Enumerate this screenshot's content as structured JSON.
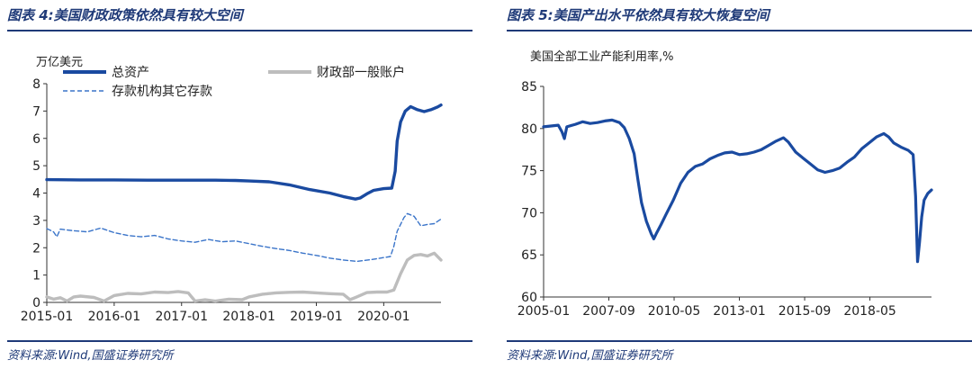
{
  "left": {
    "title": "图表 4:美国财政政策依然具有较大空间",
    "source": "资料来源:Wind,国盛证券研究所",
    "chart_data": {
      "type": "line",
      "unit_label": "万亿美元",
      "yticks": [
        0,
        1,
        2,
        3,
        4,
        5,
        6,
        7,
        8
      ],
      "ylim": [
        0,
        8
      ],
      "xlim": [
        2015.0,
        2020.85
      ],
      "xticks": [
        "2015-01",
        "2016-01",
        "2017-01",
        "2018-01",
        "2019-01",
        "2020-01"
      ],
      "legend": [
        "总资产",
        "财政部一般账户",
        "存款机构其它存款"
      ],
      "series": [
        {
          "name": "总资产",
          "color": "#1a4aa0",
          "style": "solid-thick",
          "points": [
            [
              2015.0,
              4.49
            ],
            [
              2015.5,
              4.48
            ],
            [
              2016.0,
              4.48
            ],
            [
              2016.5,
              4.47
            ],
            [
              2017.0,
              4.47
            ],
            [
              2017.5,
              4.47
            ],
            [
              2017.8,
              4.46
            ],
            [
              2018.0,
              4.44
            ],
            [
              2018.3,
              4.41
            ],
            [
              2018.6,
              4.3
            ],
            [
              2018.9,
              4.13
            ],
            [
              2019.2,
              4.0
            ],
            [
              2019.4,
              3.87
            ],
            [
              2019.58,
              3.78
            ],
            [
              2019.65,
              3.82
            ],
            [
              2019.75,
              3.97
            ],
            [
              2019.85,
              4.1
            ],
            [
              2020.0,
              4.16
            ],
            [
              2020.12,
              4.18
            ],
            [
              2020.17,
              4.8
            ],
            [
              2020.2,
              5.9
            ],
            [
              2020.25,
              6.6
            ],
            [
              2020.32,
              7.0
            ],
            [
              2020.4,
              7.16
            ],
            [
              2020.5,
              7.05
            ],
            [
              2020.6,
              6.98
            ],
            [
              2020.7,
              7.05
            ],
            [
              2020.8,
              7.15
            ],
            [
              2020.85,
              7.22
            ]
          ]
        },
        {
          "name": "财政部一般账户",
          "color": "#bdbdbd",
          "style": "solid-thick",
          "points": [
            [
              2015.0,
              0.2
            ],
            [
              2015.1,
              0.12
            ],
            [
              2015.2,
              0.17
            ],
            [
              2015.3,
              0.05
            ],
            [
              2015.4,
              0.2
            ],
            [
              2015.5,
              0.23
            ],
            [
              2015.7,
              0.18
            ],
            [
              2015.85,
              0.05
            ],
            [
              2016.0,
              0.25
            ],
            [
              2016.2,
              0.33
            ],
            [
              2016.4,
              0.31
            ],
            [
              2016.6,
              0.38
            ],
            [
              2016.8,
              0.36
            ],
            [
              2016.95,
              0.4
            ],
            [
              2017.1,
              0.35
            ],
            [
              2017.2,
              0.05
            ],
            [
              2017.35,
              0.1
            ],
            [
              2017.5,
              0.05
            ],
            [
              2017.7,
              0.12
            ],
            [
              2017.9,
              0.1
            ],
            [
              2018.0,
              0.2
            ],
            [
              2018.2,
              0.3
            ],
            [
              2018.4,
              0.35
            ],
            [
              2018.6,
              0.37
            ],
            [
              2018.8,
              0.38
            ],
            [
              2019.0,
              0.35
            ],
            [
              2019.2,
              0.32
            ],
            [
              2019.4,
              0.3
            ],
            [
              2019.5,
              0.1
            ],
            [
              2019.6,
              0.2
            ],
            [
              2019.75,
              0.36
            ],
            [
              2019.9,
              0.38
            ],
            [
              2020.05,
              0.38
            ],
            [
              2020.15,
              0.45
            ],
            [
              2020.25,
              1.05
            ],
            [
              2020.35,
              1.55
            ],
            [
              2020.45,
              1.72
            ],
            [
              2020.55,
              1.75
            ],
            [
              2020.65,
              1.7
            ],
            [
              2020.75,
              1.8
            ],
            [
              2020.85,
              1.55
            ]
          ]
        },
        {
          "name": "存款机构其它存款",
          "color": "#3a74c9",
          "style": "dashed",
          "points": [
            [
              2015.0,
              2.7
            ],
            [
              2015.1,
              2.58
            ],
            [
              2015.15,
              2.4
            ],
            [
              2015.2,
              2.68
            ],
            [
              2015.4,
              2.62
            ],
            [
              2015.6,
              2.58
            ],
            [
              2015.8,
              2.72
            ],
            [
              2016.0,
              2.55
            ],
            [
              2016.2,
              2.45
            ],
            [
              2016.4,
              2.4
            ],
            [
              2016.6,
              2.45
            ],
            [
              2016.8,
              2.32
            ],
            [
              2017.0,
              2.25
            ],
            [
              2017.2,
              2.2
            ],
            [
              2017.4,
              2.3
            ],
            [
              2017.6,
              2.22
            ],
            [
              2017.8,
              2.25
            ],
            [
              2018.0,
              2.15
            ],
            [
              2018.2,
              2.05
            ],
            [
              2018.4,
              1.97
            ],
            [
              2018.6,
              1.9
            ],
            [
              2018.8,
              1.8
            ],
            [
              2019.0,
              1.72
            ],
            [
              2019.2,
              1.62
            ],
            [
              2019.4,
              1.55
            ],
            [
              2019.6,
              1.5
            ],
            [
              2019.8,
              1.56
            ],
            [
              2020.0,
              1.64
            ],
            [
              2020.1,
              1.68
            ],
            [
              2020.15,
              2.05
            ],
            [
              2020.2,
              2.6
            ],
            [
              2020.3,
              3.1
            ],
            [
              2020.35,
              3.25
            ],
            [
              2020.45,
              3.15
            ],
            [
              2020.55,
              2.8
            ],
            [
              2020.65,
              2.85
            ],
            [
              2020.75,
              2.88
            ],
            [
              2020.85,
              3.05
            ]
          ]
        }
      ]
    }
  },
  "right": {
    "title": "图表 5:美国产出水平依然具有较大恢复空间",
    "source": "资料来源:Wind,国盛证券研究所",
    "chart_data": {
      "type": "line",
      "unit_label": "美国全部工业产能利用率,%",
      "yticks": [
        60,
        65,
        70,
        75,
        80,
        85
      ],
      "ylim": [
        60,
        85
      ],
      "xlim": [
        2005.0,
        2020.85
      ],
      "xticks": [
        "2005-01",
        "2007-09",
        "2010-05",
        "2013-01",
        "2015-09",
        "2018-05"
      ],
      "series": [
        {
          "name": "",
          "color": "#1a4aa0",
          "style": "solid-thick",
          "points": [
            [
              2005.0,
              80.2
            ],
            [
              2005.3,
              80.3
            ],
            [
              2005.6,
              80.4
            ],
            [
              2005.75,
              79.6
            ],
            [
              2005.85,
              78.8
            ],
            [
              2005.95,
              80.2
            ],
            [
              2006.3,
              80.5
            ],
            [
              2006.6,
              80.8
            ],
            [
              2006.9,
              80.6
            ],
            [
              2007.2,
              80.7
            ],
            [
              2007.5,
              80.9
            ],
            [
              2007.8,
              81.0
            ],
            [
              2008.1,
              80.7
            ],
            [
              2008.3,
              80.1
            ],
            [
              2008.5,
              78.8
            ],
            [
              2008.7,
              77.0
            ],
            [
              2008.85,
              74.0
            ],
            [
              2009.0,
              71.2
            ],
            [
              2009.2,
              69.0
            ],
            [
              2009.4,
              67.5
            ],
            [
              2009.5,
              66.9
            ],
            [
              2009.6,
              67.5
            ],
            [
              2009.8,
              68.6
            ],
            [
              2010.0,
              69.8
            ],
            [
              2010.3,
              71.5
            ],
            [
              2010.6,
              73.5
            ],
            [
              2010.9,
              74.8
            ],
            [
              2011.2,
              75.5
            ],
            [
              2011.5,
              75.8
            ],
            [
              2011.8,
              76.4
            ],
            [
              2012.1,
              76.8
            ],
            [
              2012.4,
              77.1
            ],
            [
              2012.7,
              77.2
            ],
            [
              2013.0,
              76.9
            ],
            [
              2013.3,
              77.0
            ],
            [
              2013.6,
              77.2
            ],
            [
              2013.9,
              77.5
            ],
            [
              2014.2,
              78.0
            ],
            [
              2014.5,
              78.5
            ],
            [
              2014.8,
              78.9
            ],
            [
              2015.0,
              78.4
            ],
            [
              2015.3,
              77.2
            ],
            [
              2015.6,
              76.5
            ],
            [
              2015.9,
              75.8
            ],
            [
              2016.2,
              75.1
            ],
            [
              2016.5,
              74.8
            ],
            [
              2016.8,
              75.0
            ],
            [
              2017.1,
              75.3
            ],
            [
              2017.4,
              76.0
            ],
            [
              2017.7,
              76.6
            ],
            [
              2018.0,
              77.6
            ],
            [
              2018.3,
              78.3
            ],
            [
              2018.6,
              79.0
            ],
            [
              2018.9,
              79.4
            ],
            [
              2019.1,
              79.0
            ],
            [
              2019.3,
              78.3
            ],
            [
              2019.6,
              77.8
            ],
            [
              2019.9,
              77.4
            ],
            [
              2020.1,
              76.9
            ],
            [
              2020.2,
              72.0
            ],
            [
              2020.28,
              64.2
            ],
            [
              2020.36,
              66.5
            ],
            [
              2020.45,
              69.5
            ],
            [
              2020.55,
              71.5
            ],
            [
              2020.7,
              72.3
            ],
            [
              2020.85,
              72.7
            ]
          ]
        }
      ]
    }
  }
}
